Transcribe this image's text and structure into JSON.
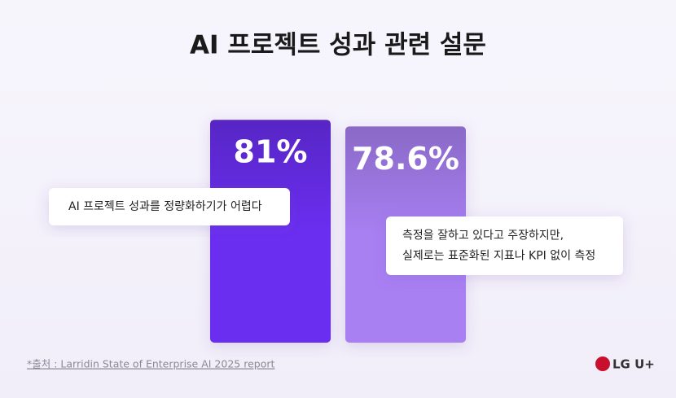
{
  "chart_data": {
    "type": "bar",
    "title": "AI 프로젝트 성과 관련 설문",
    "categories": [
      null,
      null
    ],
    "values": [
      81,
      78.6
    ],
    "value_labels": [
      "81%",
      "78.6%"
    ],
    "colors": [
      "#6a2ff0",
      "#a880f2"
    ],
    "annotations": [
      [
        "AI 프로젝트 성과를 정량화하기가 어렵다"
      ],
      [
        "측정을 잘하고 있다고 주장하지만,",
        "실제로는 표준화된 지표나 KPI 없이 측정"
      ]
    ],
    "source": "*출처 : Larridin State of Enterprise AI 2025 report",
    "logo": "LG U+"
  }
}
